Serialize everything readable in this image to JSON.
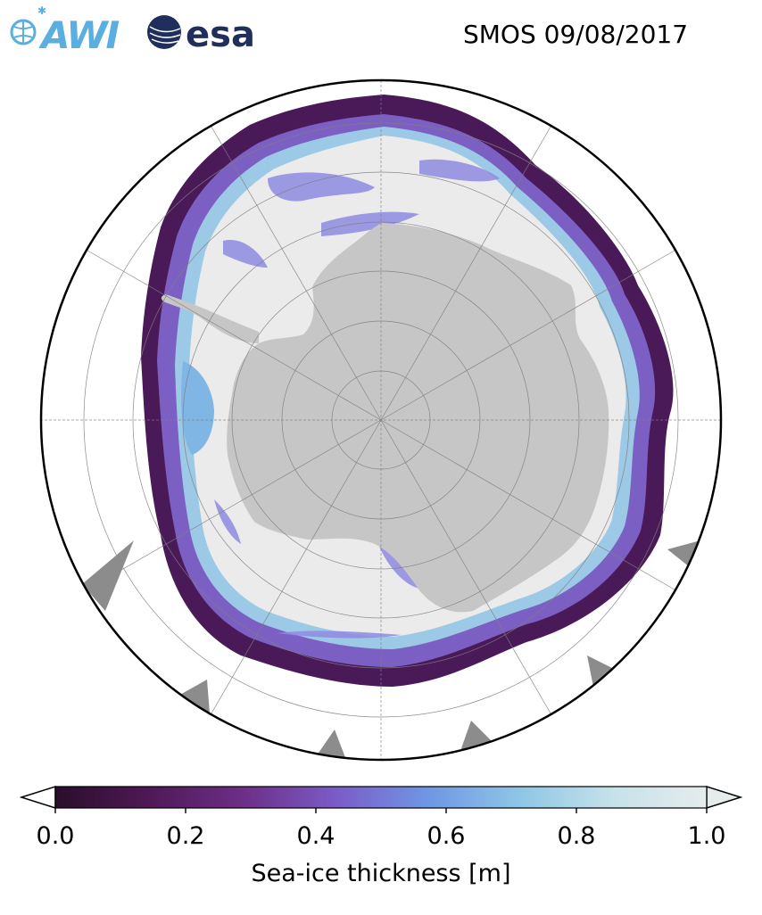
{
  "header": {
    "logo_left_text": "AWI",
    "logo_right_text": "esa",
    "title": "SMOS 09/08/2017"
  },
  "map": {
    "projection": "south-polar-stereographic",
    "colors": {
      "land": "#c6c6c6",
      "thick_ice": "#ebebeb",
      "ocean": "#ffffff",
      "missing_data": "#8c8c8c",
      "graticule": "#808080",
      "boundary": "#000000"
    }
  },
  "colorbar": {
    "label": "Sea-ice thickness [m]",
    "min": 0.0,
    "max": 1.0,
    "extend": "both",
    "ticks": [
      "0.0",
      "0.2",
      "0.4",
      "0.6",
      "0.8",
      "1.0"
    ],
    "colormap": [
      "#2a0e2b",
      "#4f1956",
      "#6c2e86",
      "#7b5bc6",
      "#6f96e4",
      "#8ec6e6",
      "#c6e2ea",
      "#e6ecec"
    ]
  }
}
